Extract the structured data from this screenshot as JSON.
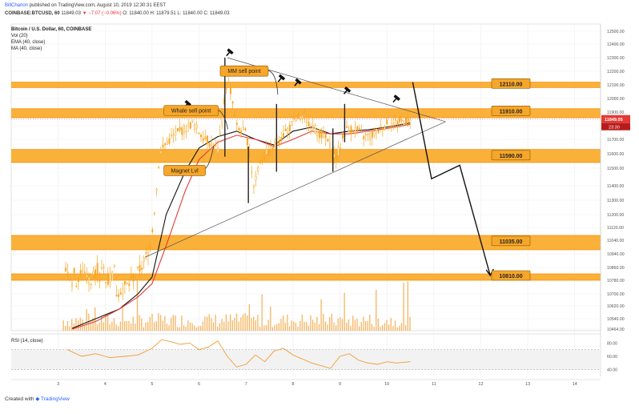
{
  "header": {
    "author": "BillCharlon",
    "published_text": "published on TradingView.com, August 10, 2019 12:30:31 EEST",
    "quote_line": {
      "symbol": "COINBASE:BTCUSD, 60",
      "last": "11849.03",
      "change": "▼ −7.07 (−0.06%)",
      "ohlc": "O: 11840.00  H: 11879.51  L: 11840.00  C: 11849.03"
    }
  },
  "legend": {
    "title": "Bitcoin / U.S. Dollar, 60, COINBASE",
    "vol": "Vol (20)",
    "ema": "EMA (40, close)",
    "ma": "MA (40, close)"
  },
  "price_tags": {
    "last": "11849.05",
    "countdown": "23:30"
  },
  "footer": {
    "created_with": "Created with",
    "brand": "TradingView"
  },
  "colors": {
    "zone": "#f9a825",
    "zone_line": "#fb8c00",
    "candle": "#f7a623",
    "volume": "#f3a33a",
    "ema": "#111111",
    "ma": "#e53935",
    "rsi": "#f39c34",
    "last_price": "#e53935",
    "brand": "#2962ff"
  },
  "chart_data": [
    {
      "type": "line",
      "title": "Bitcoin / U.S. Dollar, 60, COINBASE",
      "y_ticks": [
        12500,
        12400,
        12300,
        12200,
        12100,
        12000,
        11900,
        11800,
        11700,
        11600,
        11500,
        11400,
        11300,
        11200,
        11120,
        11040,
        10940,
        10860,
        10780,
        10700,
        10620,
        10540,
        10464
      ],
      "x_ticks": [
        "3",
        "4",
        "5",
        "6",
        "7",
        "8",
        "9",
        "10",
        "11",
        "12",
        "13",
        "14"
      ],
      "ylim": [
        10464,
        12560
      ],
      "xlim": [
        2.0,
        14.55
      ],
      "levels": [
        {
          "label": "12110.00",
          "value": 12110
        },
        {
          "label": "11910.00",
          "value": 11910
        },
        {
          "label": "11590.00",
          "value": 11590
        },
        {
          "label": "11035.00",
          "value": 11035
        },
        {
          "label": "10810.00",
          "value": 10810
        }
      ],
      "zones": [
        {
          "low": 12080,
          "high": 12120
        },
        {
          "low": 11860,
          "high": 11925
        },
        {
          "low": 11540,
          "high": 11630
        },
        {
          "low": 10970,
          "high": 11070
        },
        {
          "low": 10780,
          "high": 10820
        }
      ],
      "annotations": [
        {
          "text": "MM sell point",
          "x": 6.45,
          "y": 12240
        },
        {
          "text": "Whale sell point",
          "x": 5.25,
          "y": 11950
        },
        {
          "text": "Magnet Lvl",
          "x": 5.25,
          "y": 11520
        }
      ],
      "triangle": {
        "apex": [
          11.25,
          11830
        ],
        "upper_start": [
          6.6,
          12300
        ],
        "lower_start": [
          4.85,
          10920
        ]
      },
      "projection": {
        "x": [
          10.55,
          10.95,
          11.55,
          12.2
        ],
        "y": [
          12120,
          11440,
          11520,
          10810
        ]
      },
      "series": [
        {
          "name": "Price",
          "x": [
            4.2,
            4.5,
            4.8,
            4.95,
            5.05,
            5.15,
            5.3,
            5.5,
            5.7,
            5.85,
            6.0,
            6.2,
            6.4,
            6.6,
            6.8,
            7.0,
            7.15,
            7.3,
            7.5,
            7.7,
            7.9,
            8.1,
            8.3,
            8.5,
            8.7,
            8.9,
            9.1,
            9.3,
            9.5,
            9.7,
            9.9,
            10.1,
            10.3,
            10.5
          ],
          "y": [
            10700,
            10760,
            10880,
            11000,
            11260,
            11600,
            11680,
            11740,
            11780,
            11820,
            11750,
            11680,
            11620,
            12180,
            11780,
            11740,
            11400,
            11560,
            11620,
            11700,
            11780,
            11860,
            11840,
            11760,
            11700,
            11560,
            11760,
            11780,
            11720,
            11730,
            11800,
            11820,
            11830,
            11849
          ]
        },
        {
          "name": "EMA (40, close)",
          "x": [
            3.3,
            3.8,
            4.3,
            4.7,
            5.0,
            5.3,
            5.7,
            6.0,
            6.4,
            6.8,
            7.2,
            7.6,
            8.0,
            8.4,
            8.8,
            9.2,
            9.6,
            10.0,
            10.5
          ],
          "y": [
            10470,
            10540,
            10600,
            10700,
            10800,
            11200,
            11480,
            11640,
            11720,
            11760,
            11700,
            11660,
            11760,
            11790,
            11740,
            11760,
            11770,
            11790,
            11820
          ]
        },
        {
          "name": "MA (40, close)",
          "x": [
            3.3,
            3.8,
            4.3,
            4.7,
            5.0,
            5.3,
            5.7,
            6.0,
            6.4,
            6.8,
            7.2,
            7.6,
            8.0,
            8.4,
            8.8,
            9.2,
            9.6,
            10.0,
            10.5
          ],
          "y": [
            10464,
            10520,
            10600,
            10680,
            10760,
            11000,
            11360,
            11560,
            11680,
            11730,
            11700,
            11650,
            11700,
            11760,
            11740,
            11740,
            11760,
            11780,
            11810
          ]
        }
      ]
    },
    {
      "type": "line",
      "title": "RSI (14, close)",
      "y_ticks": [
        80.0,
        60.0,
        40.0
      ],
      "ylim": [
        30,
        90
      ],
      "band": [
        40,
        70
      ],
      "series": [
        {
          "name": "RSI (14, close)",
          "x": [
            3.2,
            3.5,
            3.8,
            4.1,
            4.4,
            4.7,
            5.0,
            5.2,
            5.4,
            5.6,
            5.8,
            6.0,
            6.2,
            6.4,
            6.6,
            6.8,
            7.0,
            7.2,
            7.4,
            7.6,
            7.8,
            8.0,
            8.2,
            8.4,
            8.6,
            8.8,
            9.0,
            9.2,
            9.4,
            9.6,
            9.8,
            10.0,
            10.2,
            10.5
          ],
          "y": [
            70,
            60,
            64,
            58,
            60,
            62,
            72,
            85,
            82,
            78,
            80,
            70,
            74,
            83,
            60,
            44,
            48,
            62,
            52,
            68,
            72,
            62,
            56,
            50,
            46,
            42,
            60,
            64,
            54,
            50,
            48,
            52,
            50,
            52
          ]
        }
      ]
    }
  ]
}
